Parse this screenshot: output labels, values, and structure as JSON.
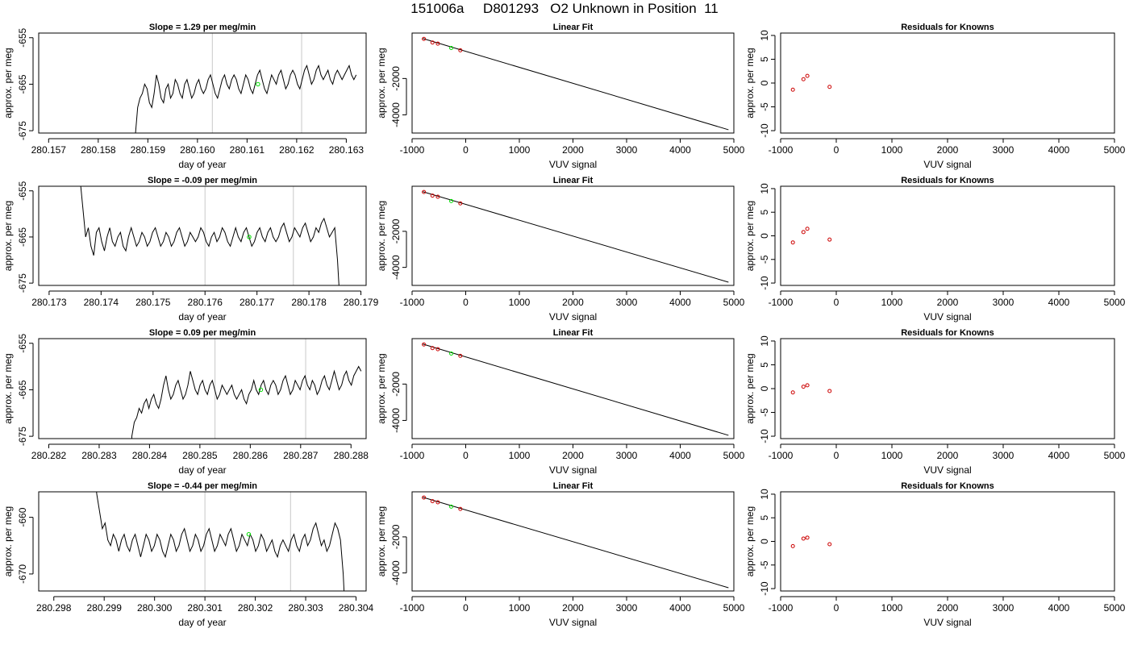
{
  "figure": {
    "title": "151006a     D801293   O2 Unknown in Position  11"
  },
  "colors": {
    "line": "#000000",
    "unknown_point": "#00dd00",
    "known_point": "#cc0000",
    "vertical_markers": "#c8c8c8"
  },
  "chart_data": [
    {
      "type": "line",
      "row": 0,
      "col": 0,
      "title": "Slope =  1.29  per meg/min",
      "xlabel": "day of year",
      "ylabel": "approx. per meg",
      "xlim": [
        280.1568,
        280.1634
      ],
      "ylim": [
        -675.5,
        -654
      ],
      "xticks": [
        "280.157",
        "280.158",
        "280.159",
        "280.160",
        "280.161",
        "280.162",
        "280.163"
      ],
      "yticks": [
        "-655",
        "-665",
        "-675"
      ],
      "ytick_values": [
        -655,
        -665,
        -675
      ],
      "vlines": [
        280.1603,
        280.1621
      ],
      "series_start": 280.1587,
      "series_end": 280.1632,
      "series_start_value": -690,
      "series_values": [
        -676,
        -670,
        -668,
        -667,
        -665,
        -666,
        -669,
        -670,
        -667,
        -663,
        -665,
        -668,
        -669,
        -666,
        -665,
        -668,
        -667,
        -664,
        -665,
        -667,
        -668,
        -665,
        -664,
        -666,
        -668,
        -667,
        -665,
        -664,
        -666,
        -667,
        -666,
        -664,
        -663,
        -665,
        -667,
        -668,
        -666,
        -664,
        -663,
        -665,
        -666,
        -664,
        -663,
        -664,
        -666,
        -667,
        -665,
        -663,
        -664,
        -666,
        -667,
        -665,
        -663,
        -662,
        -664,
        -666,
        -667,
        -665,
        -663,
        -664,
        -665,
        -663,
        -662,
        -664,
        -666,
        -665,
        -663,
        -662,
        -663,
        -665,
        -666,
        -664,
        -662,
        -661,
        -663,
        -665,
        -664,
        -662,
        -661,
        -663,
        -664,
        -663,
        -662,
        -664,
        -665,
        -663,
        -662,
        -663,
        -664,
        -663,
        -662,
        -661,
        -663,
        -664,
        -663
      ],
      "unknown_point": {
        "x": 280.16122,
        "y": -665
      }
    },
    {
      "type": "line",
      "row": 1,
      "col": 0,
      "title": "Slope =  -0.09  per meg/min",
      "xlabel": "day of year",
      "ylabel": "approx. per meg",
      "xlim": [
        280.1728,
        280.1791
      ],
      "ylim": [
        -675.5,
        -654
      ],
      "xticks": [
        "280.173",
        "280.174",
        "280.175",
        "280.176",
        "280.177",
        "280.178",
        "280.179"
      ],
      "yticks": [
        "-655",
        "-665",
        "-675"
      ],
      "ytick_values": [
        -655,
        -665,
        -675
      ],
      "vlines": [
        280.176,
        280.1777
      ],
      "series_start": 280.1736,
      "series_end": 280.1786,
      "series_start_value": -653,
      "series_values": [
        -659,
        -665,
        -663,
        -667,
        -669,
        -664,
        -663,
        -666,
        -668,
        -665,
        -663,
        -666,
        -667,
        -665,
        -664,
        -667,
        -668,
        -665,
        -663,
        -665,
        -667,
        -666,
        -664,
        -665,
        -667,
        -666,
        -664,
        -663,
        -665,
        -667,
        -666,
        -664,
        -665,
        -667,
        -666,
        -664,
        -663,
        -665,
        -667,
        -666,
        -664,
        -665,
        -666,
        -665,
        -663,
        -664,
        -666,
        -667,
        -665,
        -664,
        -666,
        -665,
        -663,
        -664,
        -666,
        -667,
        -665,
        -663,
        -665,
        -666,
        -664,
        -663,
        -665,
        -667,
        -666,
        -664,
        -663,
        -665,
        -666,
        -664,
        -663,
        -665,
        -666,
        -665,
        -663,
        -662,
        -664,
        -666,
        -665,
        -663,
        -664,
        -665,
        -663,
        -662,
        -664,
        -666,
        -665,
        -663,
        -664,
        -662,
        -661,
        -663,
        -665,
        -664,
        -663,
        -670,
        -680
      ],
      "unknown_point": {
        "x": 280.17685,
        "y": -665
      }
    },
    {
      "type": "line",
      "row": 2,
      "col": 0,
      "title": "Slope =  0.09  per meg/min",
      "xlabel": "day of year",
      "ylabel": "approx. per meg",
      "xlim": [
        280.2818,
        280.2883
      ],
      "ylim": [
        -675.5,
        -654
      ],
      "xticks": [
        "280.282",
        "280.283",
        "280.284",
        "280.285",
        "280.286",
        "280.287",
        "280.288"
      ],
      "yticks": [
        "-655",
        "-665",
        "-675"
      ],
      "ytick_values": [
        -655,
        -665,
        -675
      ],
      "vlines": [
        280.2853,
        280.2871
      ],
      "series_start": 280.2836,
      "series_end": 280.2882,
      "series_start_value": -690,
      "series_values": [
        -675,
        -672,
        -671,
        -669,
        -670,
        -668,
        -667,
        -669,
        -667,
        -666,
        -668,
        -669,
        -667,
        -664,
        -662,
        -665,
        -667,
        -666,
        -664,
        -663,
        -665,
        -667,
        -666,
        -664,
        -661,
        -663,
        -665,
        -666,
        -664,
        -663,
        -665,
        -666,
        -664,
        -663,
        -665,
        -667,
        -666,
        -664,
        -665,
        -666,
        -665,
        -664,
        -666,
        -667,
        -666,
        -665,
        -667,
        -668,
        -666,
        -665,
        -663,
        -665,
        -666,
        -664,
        -663,
        -665,
        -666,
        -664,
        -663,
        -664,
        -666,
        -665,
        -663,
        -662,
        -664,
        -666,
        -665,
        -663,
        -664,
        -665,
        -663,
        -662,
        -664,
        -665,
        -663,
        -664,
        -666,
        -665,
        -663,
        -662,
        -664,
        -665,
        -663,
        -661,
        -663,
        -665,
        -664,
        -662,
        -661,
        -663,
        -664,
        -662,
        -661,
        -660,
        -661
      ],
      "unknown_point": {
        "x": 280.28621,
        "y": -665
      }
    },
    {
      "type": "line",
      "row": 3,
      "col": 0,
      "title": "Slope =  -0.44  per meg/min",
      "xlabel": "day of year",
      "ylabel": "approx. per meg",
      "xlim": [
        280.2977,
        280.3042
      ],
      "ylim": [
        -673,
        -655.5
      ],
      "xticks": [
        "280.298",
        "280.299",
        "280.300",
        "280.301",
        "280.302",
        "280.303",
        "280.304"
      ],
      "yticks": [
        "-660",
        "-670"
      ],
      "ytick_values": [
        -660,
        -670
      ],
      "vlines": [
        280.301,
        280.3027
      ],
      "series_start": 280.2988,
      "series_end": 280.3038,
      "series_start_value": -652,
      "series_values": [
        -656,
        -659,
        -662,
        -661,
        -664,
        -665,
        -663,
        -664,
        -666,
        -664,
        -663,
        -665,
        -666,
        -664,
        -663,
        -665,
        -667,
        -665,
        -663,
        -664,
        -666,
        -665,
        -663,
        -664,
        -666,
        -667,
        -665,
        -663,
        -664,
        -666,
        -665,
        -663,
        -662,
        -664,
        -666,
        -665,
        -663,
        -664,
        -666,
        -665,
        -663,
        -662,
        -664,
        -666,
        -665,
        -663,
        -664,
        -665,
        -663,
        -662,
        -664,
        -666,
        -665,
        -663,
        -664,
        -665,
        -663,
        -664,
        -666,
        -665,
        -663,
        -664,
        -666,
        -665,
        -664,
        -666,
        -667,
        -665,
        -664,
        -665,
        -666,
        -664,
        -663,
        -665,
        -666,
        -664,
        -663,
        -665,
        -664,
        -662,
        -661,
        -663,
        -665,
        -664,
        -666,
        -665,
        -663,
        -661,
        -662,
        -664,
        -670,
        -680
      ],
      "unknown_point": {
        "x": 280.30187,
        "y": -663
      }
    },
    {
      "type": "scatter",
      "row": 0,
      "col": 1,
      "title": "Linear Fit",
      "xlabel": "VUV signal",
      "ylabel": "approx. per meg",
      "xlim": [
        -1000,
        5000
      ],
      "ylim": [
        -5000,
        500
      ],
      "xticks": [
        "-1000",
        "0",
        "1000",
        "2000",
        "3000",
        "4000",
        "5000"
      ],
      "yticks": [
        "-2000",
        "-4000"
      ],
      "ytick_values": [
        -2000,
        -4000
      ],
      "fit_line": {
        "x": [
          -800,
          4900
        ],
        "y": [
          200,
          -4820
        ]
      },
      "knowns": {
        "x": [
          -780,
          -620,
          -520,
          -100
        ],
        "y": [
          180,
          -20,
          -80,
          -450
        ]
      },
      "unknown": {
        "x": -270,
        "y": -320
      }
    },
    {
      "type": "scatter",
      "row": 1,
      "col": 1,
      "title": "Linear Fit",
      "xlabel": "VUV signal",
      "ylabel": "approx. per meg",
      "xlim": [
        -1000,
        5000
      ],
      "ylim": [
        -5000,
        500
      ],
      "xticks": [
        "-1000",
        "0",
        "1000",
        "2000",
        "3000",
        "4000",
        "5000"
      ],
      "yticks": [
        "-2000",
        "-4000"
      ],
      "ytick_values": [
        -2000,
        -4000
      ],
      "fit_line": {
        "x": [
          -800,
          4900
        ],
        "y": [
          200,
          -4820
        ]
      },
      "knowns": {
        "x": [
          -780,
          -620,
          -520,
          -100
        ],
        "y": [
          180,
          -20,
          -80,
          -450
        ]
      },
      "unknown": {
        "x": -270,
        "y": -320
      }
    },
    {
      "type": "scatter",
      "row": 2,
      "col": 1,
      "title": "Linear Fit",
      "xlabel": "VUV signal",
      "ylabel": "approx. per meg",
      "xlim": [
        -1000,
        5000
      ],
      "ylim": [
        -5000,
        500
      ],
      "xticks": [
        "-1000",
        "0",
        "1000",
        "2000",
        "3000",
        "4000",
        "5000"
      ],
      "yticks": [
        "-2000",
        "-4000"
      ],
      "ytick_values": [
        -2000,
        -4000
      ],
      "fit_line": {
        "x": [
          -800,
          4900
        ],
        "y": [
          200,
          -4820
        ]
      },
      "knowns": {
        "x": [
          -780,
          -620,
          -520,
          -100
        ],
        "y": [
          180,
          -20,
          -80,
          -450
        ]
      },
      "unknown": {
        "x": -270,
        "y": -320
      }
    },
    {
      "type": "scatter",
      "row": 3,
      "col": 1,
      "title": "Linear Fit",
      "xlabel": "VUV signal",
      "ylabel": "approx. per meg",
      "xlim": [
        -1000,
        5000
      ],
      "ylim": [
        -5000,
        500
      ],
      "xticks": [
        "-1000",
        "0",
        "1000",
        "2000",
        "3000",
        "4000",
        "5000"
      ],
      "yticks": [
        "-2000",
        "-4000"
      ],
      "ytick_values": [
        -2000,
        -4000
      ],
      "fit_line": {
        "x": [
          -800,
          4900
        ],
        "y": [
          200,
          -4820
        ]
      },
      "knowns": {
        "x": [
          -780,
          -620,
          -520,
          -100
        ],
        "y": [
          180,
          -20,
          -80,
          -450
        ]
      },
      "unknown": {
        "x": -270,
        "y": -320
      }
    },
    {
      "type": "scatter",
      "row": 0,
      "col": 2,
      "title": "Residuals for Knowns",
      "xlabel": "VUV signal",
      "ylabel": "approx. per meg",
      "xlim": [
        -1000,
        5000
      ],
      "ylim": [
        -10.5,
        10.5
      ],
      "xticks": [
        "-1000",
        "0",
        "1000",
        "2000",
        "3000",
        "4000",
        "5000"
      ],
      "yticks": [
        "10",
        "5",
        "0",
        "-5",
        "-10"
      ],
      "ytick_values": [
        10,
        5,
        0,
        -5,
        -10
      ],
      "knowns": {
        "x": [
          -780,
          -590,
          -520,
          -120
        ],
        "y": [
          -1.4,
          0.8,
          1.5,
          -0.8
        ]
      }
    },
    {
      "type": "scatter",
      "row": 1,
      "col": 2,
      "title": "Residuals for Knowns",
      "xlabel": "VUV signal",
      "ylabel": "approx. per meg",
      "xlim": [
        -1000,
        5000
      ],
      "ylim": [
        -10.5,
        10.5
      ],
      "xticks": [
        "-1000",
        "0",
        "1000",
        "2000",
        "3000",
        "4000",
        "5000"
      ],
      "yticks": [
        "10",
        "5",
        "0",
        "-5",
        "-10"
      ],
      "ytick_values": [
        10,
        5,
        0,
        -5,
        -10
      ],
      "knowns": {
        "x": [
          -780,
          -590,
          -520,
          -120
        ],
        "y": [
          -1.4,
          0.8,
          1.5,
          -0.8
        ]
      }
    },
    {
      "type": "scatter",
      "row": 2,
      "col": 2,
      "title": "Residuals for Knowns",
      "xlabel": "VUV signal",
      "ylabel": "approx. per meg",
      "xlim": [
        -1000,
        5000
      ],
      "ylim": [
        -10.5,
        10.5
      ],
      "xticks": [
        "-1000",
        "0",
        "1000",
        "2000",
        "3000",
        "4000",
        "5000"
      ],
      "yticks": [
        "10",
        "5",
        "0",
        "-5",
        "-10"
      ],
      "ytick_values": [
        10,
        5,
        0,
        -5,
        -10
      ],
      "knowns": {
        "x": [
          -780,
          -590,
          -520,
          -120
        ],
        "y": [
          -0.8,
          0.4,
          0.7,
          -0.5
        ]
      }
    },
    {
      "type": "scatter",
      "row": 3,
      "col": 2,
      "title": "Residuals for Knowns",
      "xlabel": "VUV signal",
      "ylabel": "approx. per meg",
      "xlim": [
        -1000,
        5000
      ],
      "ylim": [
        -10.5,
        10.5
      ],
      "xticks": [
        "-1000",
        "0",
        "1000",
        "2000",
        "3000",
        "4000",
        "5000"
      ],
      "yticks": [
        "10",
        "5",
        "0",
        "-5",
        "-10"
      ],
      "ytick_values": [
        10,
        5,
        0,
        -5,
        -10
      ],
      "knowns": {
        "x": [
          -780,
          -590,
          -520,
          -120
        ],
        "y": [
          -1.0,
          0.6,
          0.8,
          -0.6
        ]
      }
    }
  ]
}
